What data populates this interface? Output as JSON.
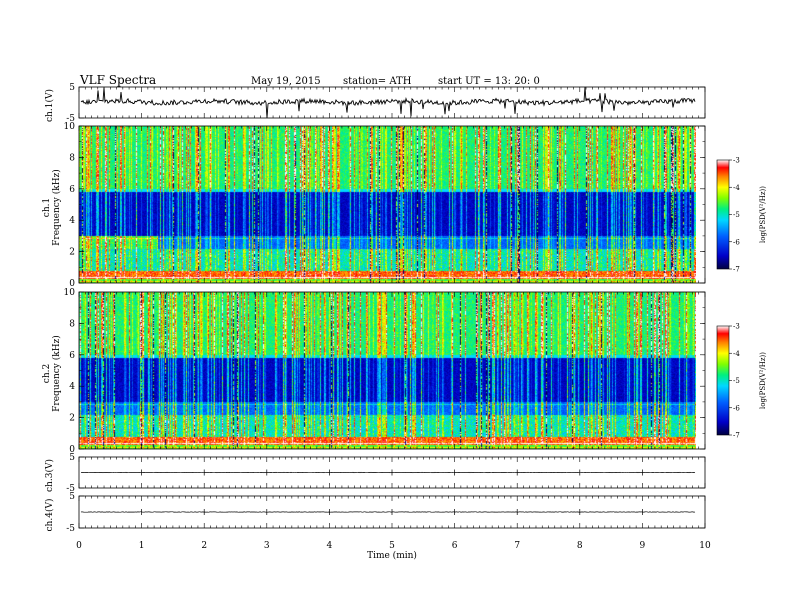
{
  "header": {
    "title": "VLF  Spectra",
    "date": "May 19, 2015",
    "station": "station= ATH",
    "start": "start  UT  =   13: 20: 0"
  },
  "chart_data": [
    {
      "type": "line",
      "panel": "ch1",
      "ylabel": "ch.1(V)",
      "ylim": [
        -5,
        5
      ],
      "yticks": [
        "5",
        "-5"
      ],
      "xlim": [
        0,
        10
      ],
      "baseline": 0.2,
      "amplitude_range": [
        -1.5,
        2.5
      ],
      "spikes_extend_to": [
        -5,
        5
      ]
    },
    {
      "type": "heatmap",
      "panel": "ch1-spectrogram",
      "ylabel_top": "ch.1",
      "ylabel": "Frequency  (kHz)",
      "ylim": [
        0,
        10
      ],
      "yticks": [
        "0",
        "2",
        "4",
        "6",
        "8",
        "10"
      ],
      "xlim": [
        0,
        10
      ],
      "data_end_min": 9.85,
      "colorbar": {
        "label": "log(PSD(V²/Hz))",
        "ticks": [
          "-3",
          "-4",
          "-5",
          "-6",
          "-7"
        ],
        "range": [
          -7,
          -3
        ]
      }
    },
    {
      "type": "heatmap",
      "panel": "ch2-spectrogram",
      "ylabel_top": "ch.2",
      "ylabel": "Frequency  (kHz)",
      "ylim": [
        0,
        10
      ],
      "yticks": [
        "0",
        "2",
        "4",
        "6",
        "8",
        "10"
      ],
      "xlim": [
        0,
        10
      ],
      "data_end_min": 9.85,
      "colorbar": {
        "label": "log(PSD(V²/Hz))",
        "ticks": [
          "-3",
          "-4",
          "-5",
          "-6",
          "-7"
        ],
        "range": [
          -7,
          -3
        ]
      }
    },
    {
      "type": "line",
      "panel": "ch3",
      "ylabel": "ch.3(V)",
      "ylim": [
        -5,
        5
      ],
      "yticks": [
        "5",
        "-5"
      ],
      "xlim": [
        0,
        10
      ],
      "baseline": 0
    },
    {
      "type": "line",
      "panel": "ch4",
      "ylabel": "ch.4(V)",
      "ylim": [
        -5,
        5
      ],
      "yticks": [
        "5",
        "-5"
      ],
      "xlim": [
        0,
        10
      ],
      "baseline": 0
    }
  ],
  "xaxis": {
    "label": "Time  (min)",
    "ticks": [
      "0",
      "1",
      "2",
      "3",
      "4",
      "5",
      "6",
      "7",
      "8",
      "9",
      "10"
    ]
  }
}
